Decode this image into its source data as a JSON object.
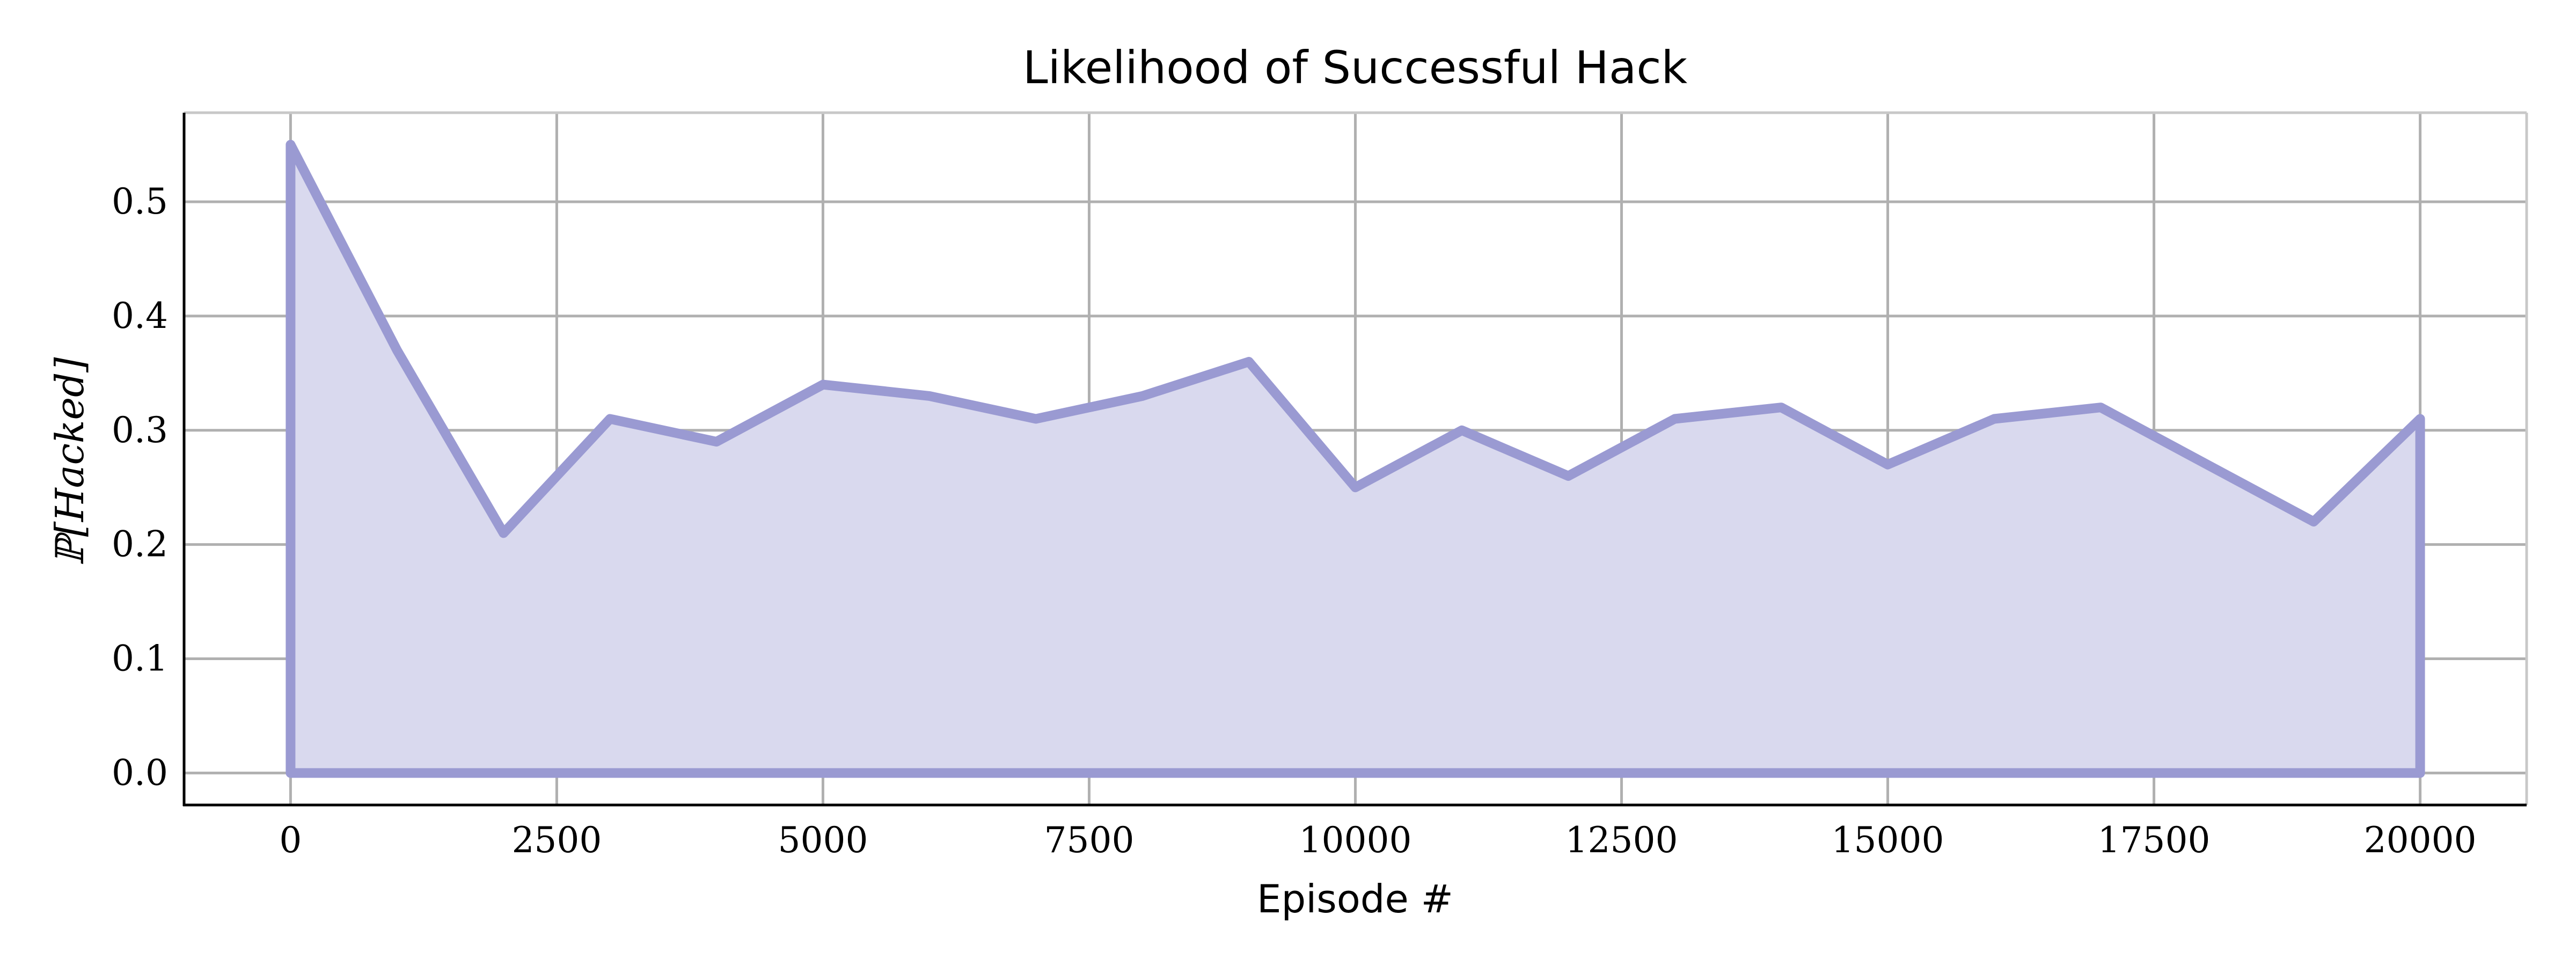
{
  "chart_data": {
    "type": "area",
    "title": "Likelihood of Successful Hack",
    "xlabel": "Episode #",
    "ylabel": "ℙ[Hacked]",
    "xlim": [
      -1000,
      21000
    ],
    "ylim": [
      -0.028,
      0.578
    ],
    "xticks": [
      0,
      2500,
      5000,
      7500,
      10000,
      12500,
      15000,
      17500,
      20000
    ],
    "yticks": [
      0.0,
      0.1,
      0.2,
      0.3,
      0.4,
      0.5
    ],
    "ytick_labels": [
      "0.0",
      "0.1",
      "0.2",
      "0.3",
      "0.4",
      "0.5"
    ],
    "grid": true,
    "line_color": "#9a9ad2",
    "fill_color": "#d9d9ee",
    "x": [
      0,
      1000,
      2000,
      3000,
      4000,
      5000,
      6000,
      7000,
      8000,
      9000,
      10000,
      11000,
      12000,
      13000,
      14000,
      15000,
      16000,
      17000,
      18000,
      19000,
      20000
    ],
    "y": [
      0.55,
      0.37,
      0.21,
      0.31,
      0.29,
      0.34,
      0.33,
      0.31,
      0.33,
      0.36,
      0.25,
      0.3,
      0.26,
      0.31,
      0.32,
      0.27,
      0.31,
      0.32,
      0.27,
      0.22,
      0.31
    ]
  }
}
